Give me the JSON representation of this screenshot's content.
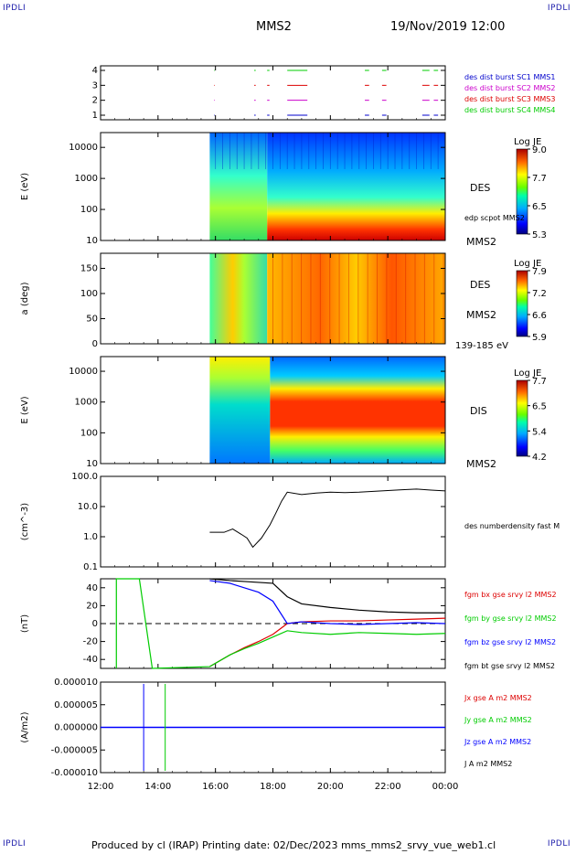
{
  "corners": {
    "top_left": "IPDLI",
    "top_right": "IPDLI",
    "bottom_left": "IPDLI",
    "bottom_right": "IPDLI"
  },
  "header": {
    "spacecraft": "MMS2",
    "datetime": "19/Nov/2019 12:00"
  },
  "footer": {
    "text": "Produced by cl (IRAP)   Printing date: 02/Dec/2023   mms_mms2_srvy_vue_web1.cl"
  },
  "colors": {
    "blue": "#0000ff",
    "green": "#00cc00",
    "red": "#dd0000",
    "magenta": "#cc00cc",
    "black": "#000000"
  },
  "chart_data": [
    {
      "type": "timeline",
      "panel": "burst-availability",
      "yticks": [
        "1",
        "2",
        "3",
        "4"
      ],
      "legend": [
        {
          "label": "des dist burst SC1 MMS1",
          "color": "#0000cc"
        },
        {
          "label": "des dist burst SC2 MMS2",
          "color": "#cc00cc"
        },
        {
          "label": "des dist burst SC3 MMS3",
          "color": "#dd0000"
        },
        {
          "label": "des dist burst SC4 MMS4",
          "color": "#00cc00"
        }
      ],
      "segments_hours": [
        [
          15.95,
          15.97
        ],
        [
          17.35,
          17.4
        ],
        [
          17.8,
          17.88
        ],
        [
          18.5,
          19.2
        ],
        [
          21.2,
          21.35
        ],
        [
          21.8,
          21.95
        ],
        [
          23.2,
          23.45
        ],
        [
          23.6,
          23.75
        ]
      ]
    },
    {
      "type": "heatmap",
      "panel": "des-energy",
      "ylabel": "E (eV)",
      "yscale": "log",
      "ylim": [
        10,
        30000
      ],
      "yticks": [
        "10",
        "100",
        "1000",
        "10000"
      ],
      "right_labels": [
        "DES",
        "edp scpot MMS2",
        "MMS2"
      ],
      "colorbar": {
        "title": "Log JE",
        "ticks": [
          "9.0",
          "7.7",
          "6.5",
          "5.3"
        ]
      },
      "data_start_hour": 15.8
    },
    {
      "type": "heatmap",
      "panel": "des-pitch-angle",
      "ylabel": "a (deg)",
      "ylim": [
        0,
        180
      ],
      "yticks": [
        "0",
        "50",
        "100",
        "150"
      ],
      "right_labels": [
        "DES",
        "MMS2",
        "139-185 eV"
      ],
      "colorbar": {
        "title": "Log JE",
        "ticks": [
          "7.9",
          "7.2",
          "6.6",
          "5.9"
        ]
      },
      "data_start_hour": 15.8
    },
    {
      "type": "heatmap",
      "panel": "dis-energy",
      "ylabel": "E (eV)",
      "yscale": "log",
      "ylim": [
        10,
        30000
      ],
      "yticks": [
        "10",
        "100",
        "1000",
        "10000"
      ],
      "right_labels": [
        "DIS",
        "MMS2"
      ],
      "colorbar": {
        "title": "Log JE",
        "ticks": [
          "7.7",
          "6.5",
          "5.4",
          "4.2"
        ]
      },
      "data_start_hour": 15.8
    },
    {
      "type": "line",
      "panel": "density",
      "ylabel": "(cm^-3)",
      "yscale": "log",
      "ylim": [
        0.1,
        100
      ],
      "yticks": [
        "0.1",
        "1.0",
        "10.0",
        "100.0"
      ],
      "series": [
        {
          "name": "des numberdensity fast M",
          "color": "#000000",
          "x": [
            15.8,
            16.3,
            16.6,
            16.9,
            17.1,
            17.3,
            17.6,
            17.9,
            18.1,
            18.3,
            18.5,
            19.0,
            19.5,
            20.0,
            20.5,
            21.0,
            21.5,
            22.0,
            22.5,
            23.0,
            23.5,
            24.0
          ],
          "y": [
            1.4,
            1.4,
            1.8,
            1.2,
            0.9,
            0.45,
            0.9,
            2.5,
            6.0,
            15.0,
            30.0,
            25.0,
            28.0,
            30.0,
            29.0,
            30.0,
            32.0,
            34.0,
            36.0,
            38.0,
            35.0,
            33.0
          ]
        }
      ]
    },
    {
      "type": "line",
      "panel": "magnetic-field",
      "ylabel": "(nT)",
      "ylim": [
        -50,
        50
      ],
      "yticks": [
        "-40",
        "-20",
        "0",
        "20",
        "40"
      ],
      "series": [
        {
          "name": "fgm bx gse srvy l2 MMS2",
          "color": "#dd0000",
          "x": [
            15.8,
            16.5,
            17.0,
            17.5,
            18.0,
            18.5,
            19.0,
            20.0,
            21.0,
            22.0,
            23.0,
            24.0
          ],
          "y": [
            -48,
            -35,
            -27,
            -20,
            -12,
            0,
            2,
            3,
            3,
            4,
            5,
            6
          ]
        },
        {
          "name": "fgm by gse srvy l2 MMS2",
          "color": "#00cc00",
          "x": [
            12.55,
            12.55,
            13.35,
            13.8,
            15.8,
            16.5,
            17.0,
            17.5,
            18.0,
            18.5,
            19.0,
            20.0,
            21.0,
            22.0,
            23.0,
            24.0
          ],
          "y": [
            -50,
            50,
            50,
            -50,
            -48,
            -35,
            -28,
            -22,
            -15,
            -8,
            -10,
            -12,
            -10,
            -11,
            -12,
            -11
          ]
        },
        {
          "name": "fgm bz gse srvy l2 MMS2",
          "color": "#0000ff",
          "x": [
            15.8,
            16.5,
            17.0,
            17.5,
            18.0,
            18.5,
            19.0,
            20.0,
            21.0,
            22.0,
            23.0,
            24.0
          ],
          "y": [
            48,
            45,
            40,
            35,
            25,
            0,
            2,
            0,
            -1,
            0,
            1,
            0
          ]
        },
        {
          "name": "fgm bt gse srvy l2 MMS2",
          "color": "#000000",
          "x": [
            15.8,
            16.5,
            17.0,
            17.5,
            18.0,
            18.5,
            19.0,
            20.0,
            21.0,
            22.0,
            23.0,
            24.0
          ],
          "y": [
            50,
            48,
            47,
            46,
            45,
            30,
            22,
            18,
            15,
            13,
            12,
            12
          ]
        }
      ]
    },
    {
      "type": "line",
      "panel": "current-density",
      "ylabel": "(A/m2)",
      "ylim": [
        -0.0001,
        0.0001
      ],
      "yticks": [
        "-0.000010",
        "-0.000005",
        "0.000000",
        "0.000005",
        "0.000010"
      ],
      "series": [
        {
          "name": "Jx gse A m2 MMS2",
          "color": "#dd0000"
        },
        {
          "name": "Jy gse A m2 MMS2",
          "color": "#00cc00"
        },
        {
          "name": "Jz gse A m2 MMS2",
          "color": "#0000ff"
        },
        {
          "name": "J A m2 MMS2",
          "color": "#000000"
        }
      ],
      "xlabel_ticks": [
        "12:00",
        "14:00",
        "16:00",
        "18:00",
        "20:00",
        "22:00",
        "00:00"
      ],
      "xlim_hours": [
        12,
        24
      ]
    }
  ]
}
